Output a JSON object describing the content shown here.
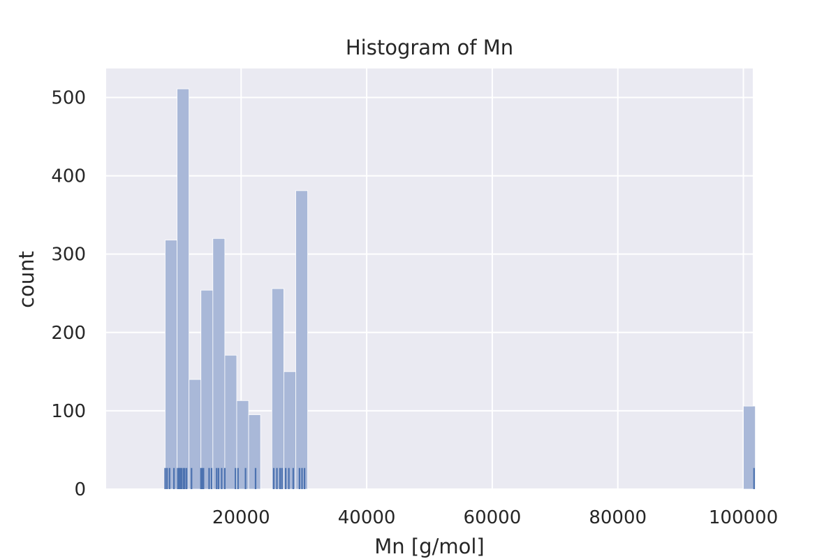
{
  "chart_data": {
    "type": "bar",
    "title": "Histogram of Mn",
    "xlabel": "Mn [g/mol]",
    "ylabel": "count",
    "xlim": [
      -1500,
      101500
    ],
    "ylim": [
      0,
      537
    ],
    "xticks": [
      20000,
      40000,
      60000,
      80000,
      100000
    ],
    "yticks": [
      0,
      100,
      200,
      300,
      400,
      500
    ],
    "grid": true,
    "colors": {
      "background": "#eaeaf2",
      "grid": "#ffffff",
      "bar": "#a9b8d8",
      "rug": "#4c72b0"
    },
    "bins": [
      {
        "x0": 7900,
        "x1": 9800,
        "count": 318
      },
      {
        "x0": 9800,
        "x1": 11700,
        "count": 511
      },
      {
        "x0": 11700,
        "x1": 13600,
        "count": 140
      },
      {
        "x0": 13600,
        "x1": 15500,
        "count": 254
      },
      {
        "x0": 15500,
        "x1": 17400,
        "count": 320
      },
      {
        "x0": 17400,
        "x1": 19300,
        "count": 171
      },
      {
        "x0": 19300,
        "x1": 21200,
        "count": 113
      },
      {
        "x0": 21200,
        "x1": 23100,
        "count": 95
      },
      {
        "x0": 24900,
        "x1": 26800,
        "count": 256
      },
      {
        "x0": 26800,
        "x1": 28700,
        "count": 150
      },
      {
        "x0": 28700,
        "x1": 30600,
        "count": 381
      },
      {
        "x0": 100000,
        "x1": 101900,
        "count": 106
      }
    ],
    "rug": [
      7900,
      8200,
      8600,
      9300,
      9900,
      10100,
      10300,
      10500,
      10800,
      11000,
      11300,
      12100,
      13600,
      13800,
      14000,
      14900,
      15300,
      16100,
      16400,
      16900,
      17400,
      19100,
      19500,
      20700,
      22300,
      25200,
      25700,
      26200,
      26500,
      27100,
      27600,
      28300,
      29300,
      29700,
      30100,
      101700
    ],
    "rug_height": 27
  }
}
